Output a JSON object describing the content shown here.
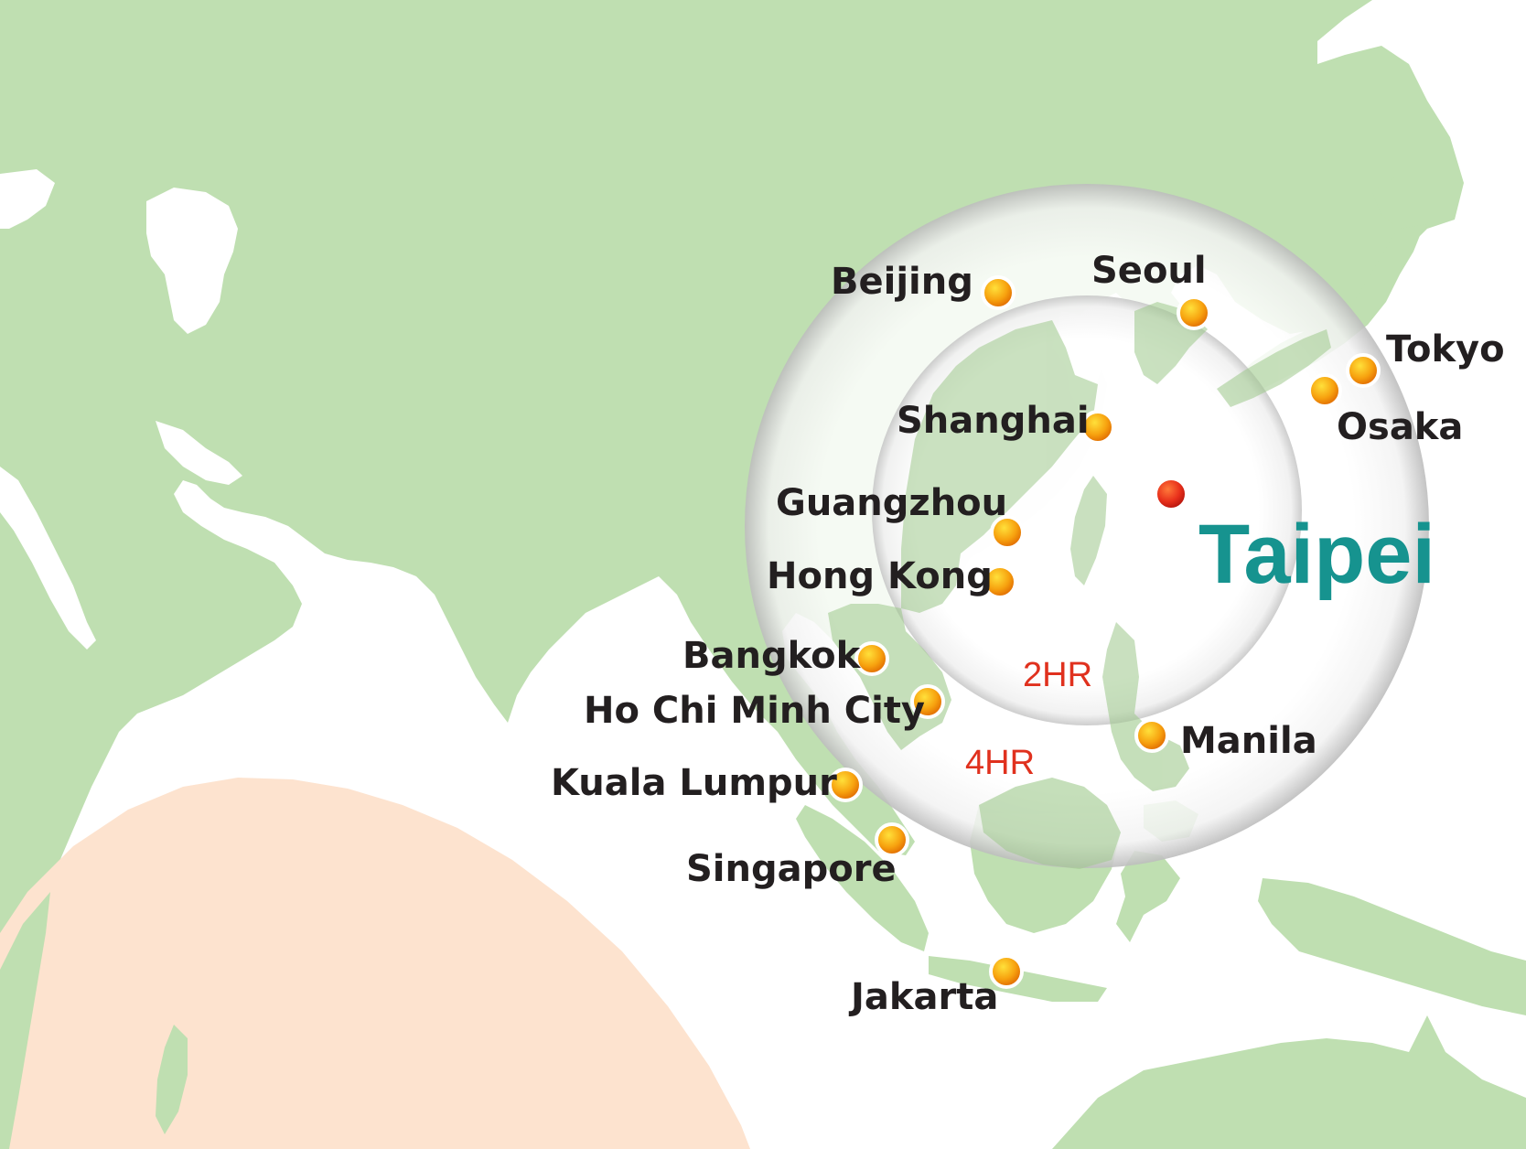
{
  "hub": {
    "name": "Taipei",
    "color": "#16938f"
  },
  "rings": [
    {
      "label": "2HR"
    },
    {
      "label": "4HR"
    }
  ],
  "cities": [
    {
      "name": "Beijing"
    },
    {
      "name": "Seoul"
    },
    {
      "name": "Tokyo"
    },
    {
      "name": "Osaka"
    },
    {
      "name": "Shanghai"
    },
    {
      "name": "Guangzhou"
    },
    {
      "name": "Hong Kong"
    },
    {
      "name": "Bangkok"
    },
    {
      "name": "Ho Chi Minh City"
    },
    {
      "name": "Manila"
    },
    {
      "name": "Kuala Lumpur"
    },
    {
      "name": "Singapore"
    },
    {
      "name": "Jakarta"
    }
  ],
  "colors": {
    "land": "#bfdfb1",
    "sea": "#ffffff",
    "australia": "#fde3cf",
    "ring_label": "#e0311e",
    "city_label": "#231f20",
    "marker": "#f29a12",
    "hub_marker": "#e2231a"
  },
  "icons": {
    "city_marker": "orange-dot-icon",
    "hub_marker": "red-dot-icon"
  }
}
